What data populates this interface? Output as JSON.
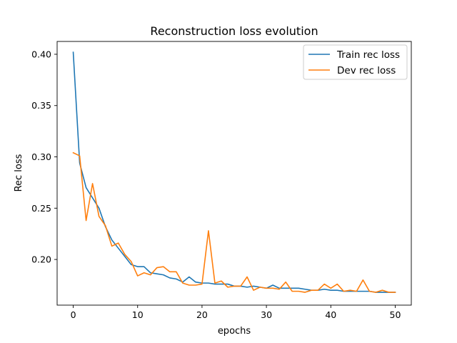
{
  "chart_data": {
    "type": "line",
    "title": "Reconstruction loss evolution",
    "xlabel": "epochs",
    "ylabel": "Rec loss",
    "xlim": [
      -2.5,
      52.5
    ],
    "ylim": [
      0.1555,
      0.4125
    ],
    "xticks": [
      0,
      10,
      20,
      30,
      40,
      50
    ],
    "yticks": [
      0.2,
      0.25,
      0.3,
      0.35,
      0.4
    ],
    "xtick_labels": [
      "0",
      "10",
      "20",
      "30",
      "40",
      "50"
    ],
    "ytick_labels": [
      "0.20",
      "0.25",
      "0.30",
      "0.35",
      "0.40"
    ],
    "grid": false,
    "legend_position": "top-right",
    "x": [
      0,
      1,
      2,
      3,
      4,
      5,
      6,
      7,
      8,
      9,
      10,
      11,
      12,
      13,
      14,
      15,
      16,
      17,
      18,
      19,
      20,
      21,
      22,
      23,
      24,
      25,
      26,
      27,
      28,
      29,
      30,
      31,
      32,
      33,
      34,
      35,
      36,
      37,
      38,
      39,
      40,
      41,
      42,
      43,
      44,
      45,
      46,
      47,
      48,
      49,
      50
    ],
    "series": [
      {
        "name": "Train rec loss",
        "color": "#1f77b4",
        "values": [
          0.402,
          0.294,
          0.27,
          0.26,
          0.25,
          0.232,
          0.219,
          0.211,
          0.203,
          0.195,
          0.193,
          0.193,
          0.187,
          0.186,
          0.185,
          0.182,
          0.181,
          0.178,
          0.183,
          0.178,
          0.177,
          0.177,
          0.176,
          0.176,
          0.176,
          0.174,
          0.174,
          0.173,
          0.174,
          0.173,
          0.172,
          0.175,
          0.172,
          0.172,
          0.172,
          0.172,
          0.171,
          0.17,
          0.17,
          0.171,
          0.17,
          0.17,
          0.169,
          0.169,
          0.169,
          0.169,
          0.169,
          0.168,
          0.168,
          0.168,
          0.168
        ]
      },
      {
        "name": "Dev rec loss",
        "color": "#ff7f0e",
        "values": [
          0.304,
          0.301,
          0.238,
          0.274,
          0.242,
          0.233,
          0.213,
          0.216,
          0.205,
          0.198,
          0.184,
          0.187,
          0.185,
          0.192,
          0.193,
          0.188,
          0.188,
          0.177,
          0.175,
          0.175,
          0.176,
          0.228,
          0.177,
          0.179,
          0.173,
          0.174,
          0.174,
          0.183,
          0.17,
          0.173,
          0.172,
          0.172,
          0.171,
          0.178,
          0.169,
          0.169,
          0.168,
          0.17,
          0.17,
          0.176,
          0.172,
          0.176,
          0.169,
          0.17,
          0.169,
          0.18,
          0.169,
          0.168,
          0.17,
          0.168,
          0.168
        ]
      }
    ]
  }
}
